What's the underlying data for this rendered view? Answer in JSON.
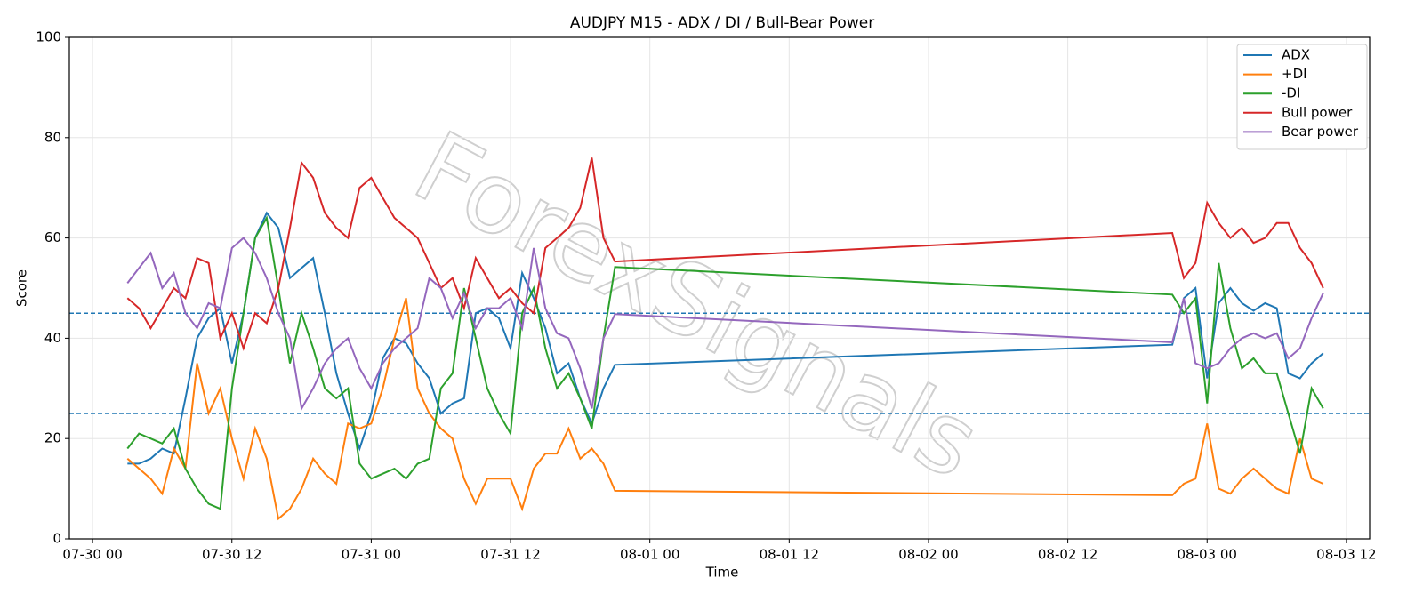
{
  "chart_data": {
    "type": "line",
    "title": "AUDJPY M15 - ADX / DI / Bull-Bear Power",
    "xlabel": "Time",
    "ylabel": "Score",
    "watermark": "ForexSignals",
    "x": [
      "07-30 03",
      "07-30 04",
      "07-30 05",
      "07-30 06",
      "07-30 07",
      "07-30 08",
      "07-30 09",
      "07-30 10",
      "07-30 11",
      "07-30 12",
      "07-30 13",
      "07-30 14",
      "07-30 15",
      "07-30 16",
      "07-30 17",
      "07-30 18",
      "07-30 19",
      "07-30 20",
      "07-30 21",
      "07-30 22",
      "07-30 23",
      "07-31 00",
      "07-31 01",
      "07-31 02",
      "07-31 03",
      "07-31 04",
      "07-31 05",
      "07-31 06",
      "07-31 07",
      "07-31 08",
      "07-31 09",
      "07-31 10",
      "07-31 11",
      "07-31 12",
      "07-31 13",
      "07-31 14",
      "07-31 15",
      "07-31 16",
      "07-31 17",
      "07-31 18",
      "07-31 19",
      "07-31 20",
      "07-31 21",
      "08-02 21",
      "08-02 22",
      "08-02 23",
      "08-03 00",
      "08-03 01",
      "08-03 02",
      "08-03 03",
      "08-03 04",
      "08-03 05",
      "08-03 06",
      "08-03 07",
      "08-03 08",
      "08-03 09",
      "08-03 10"
    ],
    "series": [
      {
        "name": "ADX",
        "color": "#1f77b4",
        "values": [
          15,
          15,
          16,
          18,
          17,
          28,
          40,
          44,
          46,
          35,
          45,
          60,
          65,
          62,
          52,
          54,
          56,
          45,
          33,
          25,
          18,
          25,
          36,
          40,
          39,
          35,
          32,
          25,
          27,
          28,
          45,
          46,
          44,
          38,
          53,
          48,
          42,
          33,
          35,
          28,
          23,
          30,
          34.7,
          38.7,
          48,
          50,
          32,
          47,
          50,
          47,
          45.5,
          47,
          46,
          33,
          32,
          35,
          37
        ]
      },
      {
        "name": "+DI",
        "color": "#ff7f0e",
        "values": [
          16,
          14,
          12,
          9,
          18,
          14,
          35,
          25,
          30,
          20,
          12,
          22,
          16,
          4,
          6,
          10,
          16,
          13,
          11,
          23,
          22,
          23,
          30,
          40,
          48,
          30,
          25,
          22,
          20,
          12,
          7,
          12,
          12,
          12,
          6,
          14,
          17,
          17,
          22,
          16,
          18,
          15,
          9.6,
          8.7,
          11,
          12,
          23,
          10,
          9,
          12,
          14,
          12,
          10,
          9,
          20,
          12,
          11
        ]
      },
      {
        "name": "-DI",
        "color": "#2ca02c",
        "values": [
          18,
          21,
          20,
          19,
          22,
          14,
          10,
          7,
          6,
          30,
          45,
          60,
          64,
          50,
          35,
          45,
          38,
          30,
          28,
          30,
          15,
          12,
          13,
          14,
          12,
          15,
          16,
          30,
          33,
          50,
          40,
          30,
          25,
          21,
          45,
          50,
          38,
          30,
          33,
          28,
          22,
          40,
          54.2,
          48.7,
          45,
          48,
          27,
          55,
          42,
          34,
          36,
          33,
          33,
          25,
          17,
          30,
          26
        ]
      },
      {
        "name": "Bull power",
        "color": "#d62728",
        "values": [
          48,
          46,
          42,
          46,
          50,
          48,
          56,
          55,
          40,
          45,
          38,
          45,
          43,
          50,
          62,
          75,
          72,
          65,
          62,
          60,
          70,
          72,
          68,
          64,
          62,
          60,
          55,
          50,
          52,
          46,
          56,
          52,
          48,
          50,
          47,
          45,
          58,
          60,
          62,
          66,
          76,
          60,
          55.3,
          61,
          52,
          55,
          67,
          63,
          60,
          62,
          59,
          60,
          63,
          63,
          58,
          55,
          50
        ]
      },
      {
        "name": "Bear power",
        "color": "#9467bd",
        "values": [
          51,
          54,
          57,
          50,
          53,
          45,
          42,
          47,
          46,
          58,
          60,
          57,
          52,
          45,
          40,
          26,
          30,
          35,
          38,
          40,
          34,
          30,
          35,
          38,
          40,
          42,
          52,
          50,
          44,
          49,
          42,
          46,
          46,
          48,
          42,
          58,
          46,
          41,
          40,
          34,
          26,
          40,
          44.8,
          39.2,
          48,
          35,
          34,
          35,
          38,
          40,
          41,
          40,
          41,
          36,
          38,
          44,
          49
        ]
      }
    ],
    "hlines": [
      45,
      25
    ],
    "hline_color": "#1f77b4",
    "xlim": [
      "07-29 22",
      "08-03 14"
    ],
    "xticks": [
      "07-30 00",
      "07-30 12",
      "07-31 00",
      "07-31 12",
      "08-01 00",
      "08-01 12",
      "08-02 00",
      "08-02 12",
      "08-03 00",
      "08-03 12"
    ],
    "ylim": [
      0,
      100
    ],
    "yticks": [
      0,
      20,
      40,
      60,
      80,
      100
    ],
    "grid": true,
    "legend": "upper right"
  }
}
